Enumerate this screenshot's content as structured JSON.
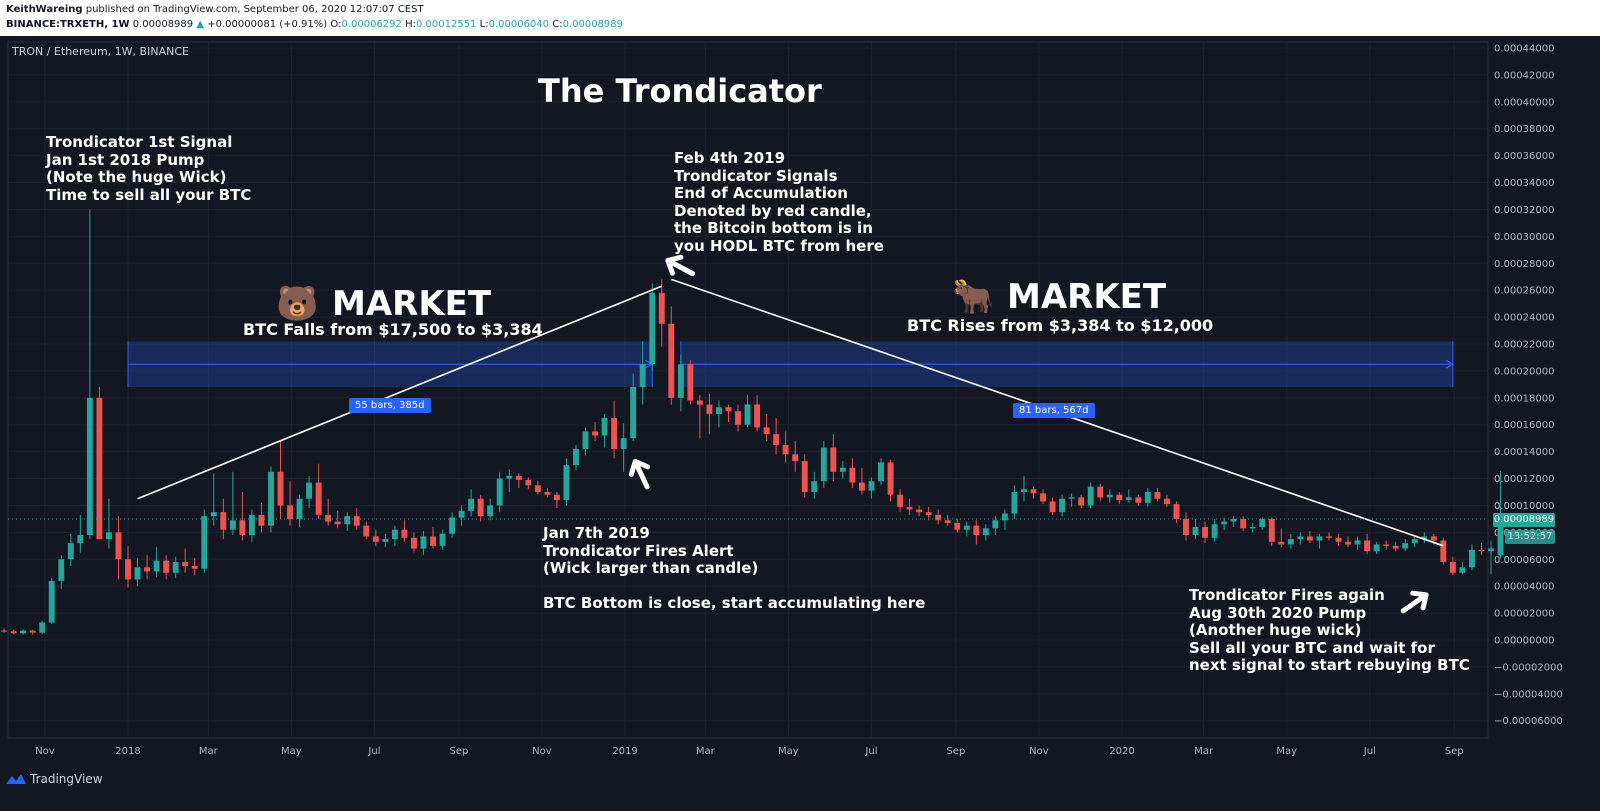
{
  "header": {
    "author": "KeithWareing",
    "published": "published on TradingView.com, September 06, 2020 12:07:07 CEST",
    "symbol": "BINANCE:TRXETH, 1W",
    "last": "0.00008989",
    "change_arrow": "▲",
    "change": "+0.00000081 (+0.91%)",
    "o_label": "O:",
    "o_value": "0.00006292",
    "h_label": "H:",
    "h_value": "0.00012551",
    "l_label": "L:",
    "l_value": "0.00006040",
    "c_label": "C:",
    "c_value": "0.00008989"
  },
  "legend": "TRON / Ethereum, 1W, BINANCE",
  "price_tag": "0.00008989",
  "countdown_tag": "13:52:57",
  "footer": {
    "brand": "TradingView",
    "logo_icon": "tradingview-logo-icon"
  },
  "annotations": {
    "title": "The Trondicator",
    "signal1": "Trondicator 1st Signal\nJan 1st 2018 Pump\n(Note the huge Wick)\nTime to sell all your BTC",
    "bear_icon": "bear-emoji-icon",
    "bear_market": "MARKET",
    "bear_sub": "BTC Falls from $17,500 to $3,384",
    "feb": "Feb 4th 2019\nTrondicator Signals\nEnd of Accumulation\nDenoted by red candle,\nthe Bitcoin bottom is in\nyou HODL BTC from here",
    "bull_icon": "bull-emoji-icon",
    "bull_market": "MARKET",
    "bull_sub": "BTC Rises from $3,384 to $12,000",
    "jan7": "Jan 7th 2019\nTrondicator Fires Alert\n(Wick larger than candle)\n\nBTC Bottom is close, start accumulating here",
    "aug": "Trondicator Fires again\nAug 30th 2020 Pump\n(Another huge wick)\nSell all your BTC and wait for\nnext signal to start rebuying BTC",
    "range1": "55 bars, 385d",
    "range2": "81 bars, 567d"
  },
  "chart_data": {
    "type": "candlestick",
    "title": "The Trondicator",
    "symbol": "TRON / Ethereum, 1W, BINANCE",
    "ylim": [
      -7e-05,
      0.000445
    ],
    "y_ticks": [
      0.00044,
      0.00042,
      0.0004,
      0.00038,
      0.00036,
      0.00034,
      0.00032,
      0.0003,
      0.00028,
      0.00026,
      0.00024,
      0.00022,
      0.0002,
      0.00018,
      0.00016,
      0.00014,
      0.00012,
      0.0001,
      8e-05,
      6e-05,
      4e-05,
      2e-05,
      0.0,
      -2e-05,
      -4e-05,
      -6e-05
    ],
    "y_tick_labels": [
      "0.00044000",
      "0.00042000",
      "0.00040000",
      "0.00038000",
      "0.00036000",
      "0.00034000",
      "0.00032000",
      "0.00030000",
      "0.00028000",
      "0.00026000",
      "0.00024000",
      "0.00022000",
      "0.00020000",
      "0.00018000",
      "0.00016000",
      "0.00014000",
      "0.00012000",
      "0.00010000",
      "0.00008000",
      "0.00006000",
      "0.00004000",
      "0.00002000",
      "0.00000000",
      "−0.00002000",
      "−0.00004000",
      "−0.00006000"
    ],
    "x_labels": [
      {
        "label": "Nov",
        "date": "2017-11-01"
      },
      {
        "label": "2018",
        "date": "2018-01-01"
      },
      {
        "label": "Mar",
        "date": "2018-03-01"
      },
      {
        "label": "May",
        "date": "2018-05-01"
      },
      {
        "label": "Jul",
        "date": "2018-07-01"
      },
      {
        "label": "Sep",
        "date": "2018-09-01"
      },
      {
        "label": "Nov",
        "date": "2018-11-01"
      },
      {
        "label": "2019",
        "date": "2019-01-01"
      },
      {
        "label": "Mar",
        "date": "2019-03-01"
      },
      {
        "label": "May",
        "date": "2019-05-01"
      },
      {
        "label": "Jul",
        "date": "2019-07-01"
      },
      {
        "label": "Sep",
        "date": "2019-09-01"
      },
      {
        "label": "Nov",
        "date": "2019-11-01"
      },
      {
        "label": "2020",
        "date": "2020-01-01"
      },
      {
        "label": "Mar",
        "date": "2020-03-01"
      },
      {
        "label": "May",
        "date": "2020-05-01"
      },
      {
        "label": "Jul",
        "date": "2020-07-01"
      },
      {
        "label": "Sep",
        "date": "2020-09-01"
      }
    ],
    "up_color": "#26a69a",
    "down_color": "#ef5350",
    "candle_start": "2017-09-18",
    "candle_interval_days": 7,
    "candles": [
      [
        9.5e-06,
        1.1e-05,
        8e-06,
        8.5e-06
      ],
      [
        8.5e-06,
        9.5e-06,
        6e-06,
        7e-06
      ],
      [
        7e-06,
        8.5e-06,
        5.5e-06,
        6.5e-06
      ],
      [
        6.5e-06,
        7.5e-06,
        4.5e-06,
        5e-06
      ],
      [
        5e-06,
        8e-06,
        4e-06,
        7e-06
      ],
      [
        7e-06,
        7.5e-06,
        4e-06,
        5.5e-06
      ],
      [
        5.5e-06,
        1.4e-05,
        4.5e-06,
        1.3e-05
      ],
      [
        1.3e-05,
        4.6e-05,
        1.2e-05,
        4.4e-05
      ],
      [
        4.4e-05,
        6.3e-05,
        3.8e-05,
        6e-05
      ],
      [
        6e-05,
        7.9e-05,
        5.5e-05,
        7.2e-05
      ],
      [
        7.2e-05,
        9.3e-05,
        6.5e-05,
        7.8e-05
      ],
      [
        7.8e-05,
        0.00032,
        7.5e-05,
        0.00018
      ],
      [
        0.00018,
        0.000188,
        7.5e-05,
        7.5e-05
      ],
      [
        7.5e-05,
        0.000105,
        6.8e-05,
        8e-05
      ],
      [
        8e-05,
        9.2e-05,
        4.5e-05,
        6e-05
      ],
      [
        6e-05,
        7e-05,
        3.9e-05,
        4.5e-05
      ],
      [
        4.5e-05,
        6.1e-05,
        4e-05,
        5.4e-05
      ],
      [
        5.4e-05,
        6.3e-05,
        4.5e-05,
        5.1e-05
      ],
      [
        5.1e-05,
        6.9e-05,
        4.7e-05,
        5.9e-05
      ],
      [
        5.9e-05,
        6.3e-05,
        4.5e-05,
        5e-05
      ],
      [
        5e-05,
        6.2e-05,
        4.6e-05,
        5.8e-05
      ],
      [
        5.8e-05,
        6.8e-05,
        5e-05,
        5.5e-05
      ],
      [
        5.5e-05,
        6.1e-05,
        4.8e-05,
        5.3e-05
      ],
      [
        5.3e-05,
        9.7e-05,
        5e-05,
        9.2e-05
      ],
      [
        9.2e-05,
        0.000124,
        8.5e-05,
        9.5e-05
      ],
      [
        9.5e-05,
        0.000105,
        7.5e-05,
        8.2e-05
      ],
      [
        8.2e-05,
        0.000125,
        7.8e-05,
        8.9e-05
      ],
      [
        8.9e-05,
        0.00011,
        7.4e-05,
        7.8e-05
      ],
      [
        7.8e-05,
        9.7e-05,
        7.3e-05,
        9.3e-05
      ],
      [
        9.3e-05,
        0.000102,
        8e-05,
        8.5e-05
      ],
      [
        8.5e-05,
        0.000129,
        8e-05,
        0.000125
      ],
      [
        0.000125,
        0.000148,
        9e-05,
        0.0001
      ],
      [
        0.0001,
        0.000118,
        8.5e-05,
        9e-05
      ],
      [
        9e-05,
        0.000108,
        8.4e-05,
        0.000105
      ],
      [
        0.000105,
        0.000122,
        9.8e-05,
        0.000117
      ],
      [
        0.000117,
        0.000131,
        9e-05,
        9.3e-05
      ],
      [
        9.3e-05,
        0.000105,
        8.5e-05,
        8.8e-05
      ],
      [
        8.8e-05,
        9.6e-05,
        8.3e-05,
        8.6e-05
      ],
      [
        8.6e-05,
        9.5e-05,
        8.1e-05,
        9.2e-05
      ],
      [
        9.2e-05,
        9.8e-05,
        8.2e-05,
        8.5e-05
      ],
      [
        8.5e-05,
        8.8e-05,
        7.5e-05,
        7.7e-05
      ],
      [
        7.7e-05,
        8.2e-05,
        7e-05,
        7.3e-05
      ],
      [
        7.3e-05,
        7.9e-05,
        6.9e-05,
        7.5e-05
      ],
      [
        7.5e-05,
        8.5e-05,
        7e-05,
        8.2e-05
      ],
      [
        8.2e-05,
        8.9e-05,
        7.3e-05,
        7.6e-05
      ],
      [
        7.6e-05,
        8e-05,
        6.5e-05,
        6.8e-05
      ],
      [
        6.8e-05,
        8.1e-05,
        6.3e-05,
        7.7e-05
      ],
      [
        7.7e-05,
        8.4e-05,
        6.8e-05,
        7e-05
      ],
      [
        7e-05,
        8.2e-05,
        6.7e-05,
        7.9e-05
      ],
      [
        7.9e-05,
        9.5e-05,
        7.6e-05,
        9.1e-05
      ],
      [
        9.1e-05,
        0.0001,
        8.5e-05,
        9.6e-05
      ],
      [
        9.6e-05,
        0.000112,
        9.2e-05,
        0.000105
      ],
      [
        0.000105,
        0.000108,
        8.8e-05,
        9.2e-05
      ],
      [
        9.2e-05,
        0.000105,
        8.9e-05,
        0.0001
      ],
      [
        0.0001,
        0.000125,
        9.5e-05,
        0.00012
      ],
      [
        0.00012,
        0.000127,
        0.00011,
        0.000122
      ],
      [
        0.000122,
        0.000124,
        0.000113,
        0.000119
      ],
      [
        0.000119,
        0.000121,
        0.000112,
        0.000115
      ],
      [
        0.000115,
        0.000118,
        0.000108,
        0.00011
      ],
      [
        0.00011,
        0.000113,
        0.000106,
        0.000108
      ],
      [
        0.000108,
        0.00011,
        9.8e-05,
        0.000104
      ],
      [
        0.000104,
        0.000135,
        0.0001,
        0.00013
      ],
      [
        0.00013,
        0.000145,
        0.000126,
        0.000142
      ],
      [
        0.000142,
        0.000158,
        0.000137,
        0.000155
      ],
      [
        0.000155,
        0.000162,
        0.000148,
        0.000152
      ],
      [
        0.000152,
        0.000168,
        0.000143,
        0.000165
      ],
      [
        0.000165,
        0.000178,
        0.000135,
        0.000142
      ],
      [
        0.000142,
        0.000161,
        0.000125,
        0.00015
      ],
      [
        0.00015,
        0.000198,
        0.000148,
        0.000188
      ],
      [
        0.000188,
        0.000222,
        0.000175,
        0.000205
      ],
      [
        0.000205,
        0.000265,
        0.0002,
        0.000258
      ],
      [
        0.000258,
        0.000268,
        0.000218,
        0.000235
      ],
      [
        0.000235,
        0.000248,
        0.000175,
        0.00018
      ],
      [
        0.00018,
        0.000212,
        0.00017,
        0.000205
      ],
      [
        0.000205,
        0.000208,
        0.000175,
        0.000178
      ],
      [
        0.000178,
        0.000182,
        0.00015,
        0.000175
      ],
      [
        0.000175,
        0.000183,
        0.000153,
        0.000168
      ],
      [
        0.000168,
        0.000178,
        0.000158,
        0.000173
      ],
      [
        0.000173,
        0.000175,
        0.000162,
        0.00017
      ],
      [
        0.00017,
        0.000175,
        0.000155,
        0.00016
      ],
      [
        0.00016,
        0.000182,
        0.000158,
        0.000175
      ],
      [
        0.000175,
        0.000182,
        0.000155,
        0.000158
      ],
      [
        0.000158,
        0.000168,
        0.000148,
        0.000153
      ],
      [
        0.000153,
        0.000165,
        0.000138,
        0.000145
      ],
      [
        0.000145,
        0.000155,
        0.000132,
        0.000138
      ],
      [
        0.000138,
        0.000148,
        0.000125,
        0.000133
      ],
      [
        0.000133,
        0.000138,
        0.000106,
        0.00011
      ],
      [
        0.00011,
        0.000125,
        0.000105,
        0.000118
      ],
      [
        0.000118,
        0.000148,
        0.000113,
        0.000143
      ],
      [
        0.000143,
        0.000153,
        0.000118,
        0.000125
      ],
      [
        0.000125,
        0.000133,
        0.00012,
        0.000128
      ],
      [
        0.000128,
        0.000135,
        0.000113,
        0.000117
      ],
      [
        0.000117,
        0.000128,
        0.000108,
        0.000111
      ],
      [
        0.000111,
        0.000121,
        0.000105,
        0.000118
      ],
      [
        0.000118,
        0.000135,
        0.000115,
        0.000132
      ],
      [
        0.000132,
        0.000134,
        0.000103,
        0.000108
      ],
      [
        0.000108,
        0.000112,
        9.5e-05,
        9.9e-05
      ],
      [
        9.9e-05,
        0.000105,
        9.3e-05,
        9.7e-05
      ],
      [
        9.7e-05,
        0.0001,
        9.2e-05,
        9.5e-05
      ],
      [
        9.5e-05,
        9.9e-05,
        8.9e-05,
        9.3e-05
      ],
      [
        9.3e-05,
        9.7e-05,
        8.6e-05,
        8.9e-05
      ],
      [
        8.9e-05,
        9.3e-05,
        8.5e-05,
        8.7e-05
      ],
      [
        8.7e-05,
        9e-05,
        8e-05,
        8.2e-05
      ],
      [
        8.2e-05,
        8.8e-05,
        7.7e-05,
        8.5e-05
      ],
      [
        8.5e-05,
        8.9e-05,
        7.1e-05,
        7.8e-05
      ],
      [
        7.8e-05,
        8.6e-05,
        7.4e-05,
        8.3e-05
      ],
      [
        8.3e-05,
        9.2e-05,
        7.8e-05,
        8.9e-05
      ],
      [
        8.9e-05,
        9.7e-05,
        8.2e-05,
        9.4e-05
      ],
      [
        9.4e-05,
        0.000115,
        9e-05,
        0.00011
      ],
      [
        0.00011,
        0.000122,
        0.000103,
        0.000112
      ],
      [
        0.000112,
        0.000114,
        0.000105,
        0.000109
      ],
      [
        0.000109,
        0.000112,
        0.000101,
        0.000103
      ],
      [
        0.000103,
        0.000106,
        9.3e-05,
        9.5e-05
      ],
      [
        9.5e-05,
        0.000108,
        9.2e-05,
        0.000105
      ],
      [
        0.000105,
        0.000109,
        9.9e-05,
        0.000106
      ],
      [
        0.000106,
        0.000108,
        9.8e-05,
        0.0001
      ],
      [
        0.0001,
        0.000117,
        9.8e-05,
        0.000114
      ],
      [
        0.000114,
        0.000116,
        0.000103,
        0.000106
      ],
      [
        0.000106,
        0.000112,
        0.000102,
        0.000108
      ],
      [
        0.000108,
        0.00011,
        0.000101,
        0.000104
      ],
      [
        0.000104,
        0.000112,
        0.000102,
        0.000106
      ],
      [
        0.000106,
        0.000108,
        0.0001,
        0.000102
      ],
      [
        0.000102,
        0.000113,
        9.9e-05,
        0.00011
      ],
      [
        0.00011,
        0.000113,
        0.000103,
        0.000105
      ],
      [
        0.000105,
        0.000108,
        9.9e-05,
        0.000101
      ],
      [
        0.000101,
        0.000103,
        8.7e-05,
        9e-05
      ],
      [
        9e-05,
        9.5e-05,
        7.4e-05,
        7.8e-05
      ],
      [
        7.8e-05,
        9e-05,
        7.5e-05,
        8.4e-05
      ],
      [
        8.4e-05,
        8.8e-05,
        7.2e-05,
        7.6e-05
      ],
      [
        7.6e-05,
        9e-05,
        7.3e-05,
        8.6e-05
      ],
      [
        8.6e-05,
        9.1e-05,
        8.2e-05,
        8.8e-05
      ],
      [
        8.8e-05,
        9.2e-05,
        8.4e-05,
        9e-05
      ],
      [
        9e-05,
        9.2e-05,
        8.1e-05,
        8.3e-05
      ],
      [
        8.3e-05,
        8.7e-05,
        8e-05,
        8.4e-05
      ],
      [
        8.4e-05,
        9.1e-05,
        8.2e-05,
        9e-05
      ],
      [
        9e-05,
        9.1e-05,
        7e-05,
        7.3e-05
      ],
      [
        7.3e-05,
        8.3e-05,
        6.9e-05,
        7.1e-05
      ],
      [
        7.1e-05,
        7.9e-05,
        6.8e-05,
        7.5e-05
      ],
      [
        7.5e-05,
        8e-05,
        7.1e-05,
        7.7e-05
      ],
      [
        7.7e-05,
        8.1e-05,
        7.2e-05,
        7.4e-05
      ],
      [
        7.4e-05,
        7.9e-05,
        6.8e-05,
        7.7e-05
      ],
      [
        7.7e-05,
        8e-05,
        7.4e-05,
        7.6e-05
      ],
      [
        7.6e-05,
        7.9e-05,
        7e-05,
        7.3e-05
      ],
      [
        7.3e-05,
        7.7e-05,
        6.9e-05,
        7.1e-05
      ],
      [
        7.1e-05,
        7.7e-05,
        6.7e-05,
        7.4e-05
      ],
      [
        7.4e-05,
        7.9e-05,
        6.4e-05,
        6.6e-05
      ],
      [
        6.6e-05,
        7.3e-05,
        6.4e-05,
        7.1e-05
      ],
      [
        7.1e-05,
        7.4e-05,
        6.7e-05,
        7e-05
      ],
      [
        7e-05,
        7.3e-05,
        6.6e-05,
        6.8e-05
      ],
      [
        6.8e-05,
        7.5e-05,
        6.6e-05,
        7.2e-05
      ],
      [
        7.2e-05,
        7.7e-05,
        6.9e-05,
        7.5e-05
      ],
      [
        7.5e-05,
        8e-05,
        7.2e-05,
        7.7e-05
      ],
      [
        7.7e-05,
        7.9e-05,
        7.1e-05,
        7.4e-05
      ],
      [
        7.4e-05,
        7.6e-05,
        5.6e-05,
        5.8e-05
      ],
      [
        5.8e-05,
        6.2e-05,
        4.8e-05,
        5e-05
      ],
      [
        5e-05,
        5.8e-05,
        4.9e-05,
        5.4e-05
      ],
      [
        5.4e-05,
        7.1e-05,
        5.2e-05,
        6.7e-05
      ],
      [
        6.7e-05,
        7.2e-05,
        6.3e-05,
        6.6e-05
      ],
      [
        6.6e-05,
        7.4e-05,
        4.9e-05,
        6.8e-05
      ],
      [
        6.292e-05,
        0.00012551,
        6.04e-05,
        8.989e-05
      ]
    ],
    "trend_lines": [
      {
        "from": [
          "2018-01-08",
          0.000105
        ],
        "to": [
          "2019-01-28",
          0.000263
        ]
      },
      {
        "from": [
          "2019-02-04",
          0.000268
        ],
        "to": [
          "2020-08-24",
          7e-05
        ]
      }
    ],
    "date_ranges": [
      {
        "label": "55 bars, 385d",
        "from": "2018-01-01",
        "to": "2019-01-21",
        "y_low": 0.000188,
        "y_high": 0.000222
      },
      {
        "label": "81 bars, 567d",
        "from": "2019-02-11",
        "to": "2020-08-31",
        "y_low": 0.000188,
        "y_high": 0.000222
      }
    ],
    "last_price": 8.989e-05,
    "legend": "none",
    "grid": true
  }
}
